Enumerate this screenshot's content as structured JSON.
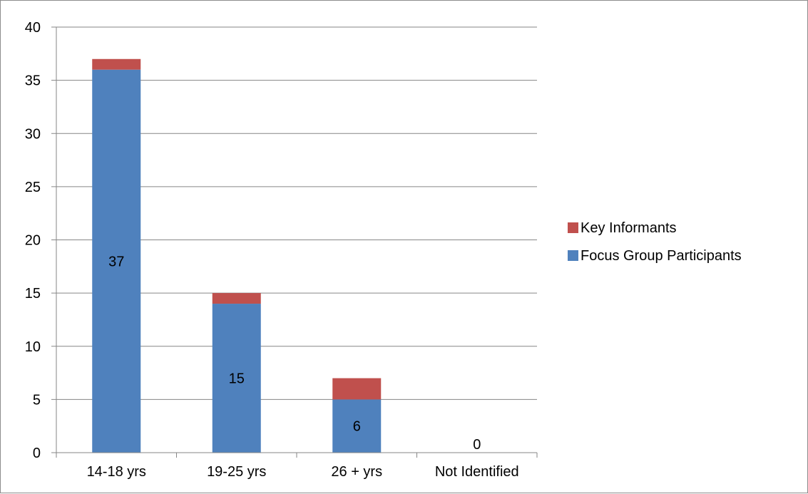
{
  "chart_data": {
    "type": "bar",
    "stacked": true,
    "categories": [
      "14-18 yrs",
      "19-25 yrs",
      "26 + yrs",
      "Not Identified"
    ],
    "series": [
      {
        "name": "Focus Group Participants",
        "values": [
          36,
          14,
          5,
          0
        ],
        "color": "#4f81bd"
      },
      {
        "name": "Key Informants",
        "values": [
          1,
          1,
          2,
          0
        ],
        "color": "#c0504d"
      }
    ],
    "data_labels": [
      "37",
      "15",
      "6",
      "0"
    ],
    "ylim": [
      0,
      40
    ],
    "yticks": [
      0,
      5,
      10,
      15,
      20,
      25,
      30,
      35,
      40
    ],
    "grid": true,
    "legend_position": "right"
  }
}
